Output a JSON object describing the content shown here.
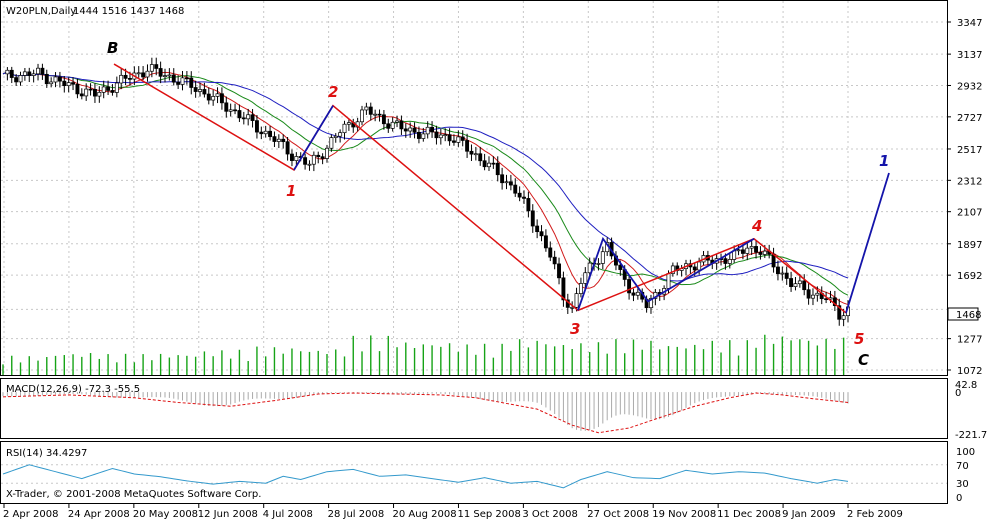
{
  "chart_data": {
    "type": "candlestick",
    "instrument_label": "W20PLN,Daily",
    "ohlc_label": "1444 1516 1437 1468",
    "price_ticks": [
      3347,
      3137,
      2932,
      2727,
      2517,
      2312,
      2107,
      1897,
      1692,
      1468,
      1277,
      1072
    ],
    "last_price": "1468",
    "ylim": [
      1072,
      3347
    ],
    "x_ticks": [
      "2 Apr 2008",
      "24 Apr 2008",
      "20 May 2008",
      "12 Jun 2008",
      "4 Jul 2008",
      "28 Jul 2008",
      "20 Aug 2008",
      "11 Sep 2008",
      "3 Oct 2008",
      "27 Oct 2008",
      "19 Nov 2008",
      "11 Dec 2008",
      "9 Jan 2009",
      "2 Feb 2009"
    ],
    "price_path": [
      [
        0,
        2990
      ],
      [
        8,
        3010
      ],
      [
        14,
        2940
      ],
      [
        21,
        2870
      ],
      [
        27,
        2960
      ],
      [
        33,
        3040
      ],
      [
        38,
        2990
      ],
      [
        43,
        2930
      ],
      [
        48,
        2850
      ],
      [
        53,
        2760
      ],
      [
        58,
        2660
      ],
      [
        62,
        2580
      ],
      [
        66,
        2480
      ],
      [
        70,
        2410
      ],
      [
        73,
        2500
      ],
      [
        77,
        2630
      ],
      [
        80,
        2700
      ],
      [
        83,
        2770
      ],
      [
        86,
        2720
      ],
      [
        91,
        2650
      ],
      [
        96,
        2620
      ],
      [
        102,
        2600
      ],
      [
        107,
        2500
      ],
      [
        112,
        2380
      ],
      [
        117,
        2250
      ],
      [
        121,
        2050
      ],
      [
        125,
        1820
      ],
      [
        128,
        1560
      ],
      [
        130,
        1470
      ],
      [
        132,
        1650
      ],
      [
        135,
        1780
      ],
      [
        138,
        1880
      ],
      [
        141,
        1700
      ],
      [
        144,
        1580
      ],
      [
        147,
        1490
      ],
      [
        150,
        1600
      ],
      [
        153,
        1720
      ],
      [
        157,
        1760
      ],
      [
        162,
        1790
      ],
      [
        167,
        1810
      ],
      [
        170,
        1880
      ],
      [
        173,
        1850
      ],
      [
        176,
        1760
      ],
      [
        180,
        1640
      ],
      [
        184,
        1580
      ],
      [
        188,
        1540
      ],
      [
        191,
        1440
      ],
      [
        193,
        1468
      ]
    ],
    "volume": [
      0.42,
      0.5,
      0.46,
      0.48,
      0.55,
      0.62,
      0.58,
      0.86,
      0.74,
      0.68,
      0.8,
      0.72,
      0.78,
      0.7,
      0.76,
      0.9,
      0.82
    ],
    "macd": {
      "label": "MACD(12,26,9) -72.3 -55.5",
      "ticks": [
        42.8,
        0.0,
        -221.7
      ],
      "ylim": [
        -221.7,
        42.8
      ],
      "signal": [
        [
          0,
          -25
        ],
        [
          15,
          -15
        ],
        [
          30,
          -30
        ],
        [
          40,
          -55
        ],
        [
          52,
          -75
        ],
        [
          62,
          -45
        ],
        [
          72,
          -10
        ],
        [
          80,
          -5
        ],
        [
          90,
          -10
        ],
        [
          100,
          -15
        ],
        [
          108,
          -30
        ],
        [
          115,
          -60
        ],
        [
          122,
          -90
        ],
        [
          130,
          -175
        ],
        [
          136,
          -215
        ],
        [
          143,
          -190
        ],
        [
          150,
          -135
        ],
        [
          158,
          -75
        ],
        [
          166,
          -30
        ],
        [
          172,
          -5
        ],
        [
          178,
          -15
        ],
        [
          185,
          -35
        ],
        [
          193,
          -55
        ]
      ]
    },
    "rsi": {
      "label": "RSI(14) 34.4297",
      "ticks": [
        100,
        70,
        30,
        0
      ],
      "ylim": [
        0,
        100
      ],
      "values": [
        [
          0,
          50
        ],
        [
          6,
          70
        ],
        [
          12,
          55
        ],
        [
          18,
          40
        ],
        [
          25,
          62
        ],
        [
          30,
          50
        ],
        [
          36,
          44
        ],
        [
          42,
          35
        ],
        [
          48,
          28
        ],
        [
          54,
          34
        ],
        [
          60,
          30
        ],
        [
          64,
          45
        ],
        [
          68,
          38
        ],
        [
          74,
          55
        ],
        [
          80,
          60
        ],
        [
          86,
          45
        ],
        [
          92,
          48
        ],
        [
          98,
          40
        ],
        [
          104,
          32
        ],
        [
          110,
          42
        ],
        [
          116,
          30
        ],
        [
          122,
          34
        ],
        [
          128,
          20
        ],
        [
          132,
          38
        ],
        [
          138,
          55
        ],
        [
          144,
          42
        ],
        [
          150,
          40
        ],
        [
          156,
          58
        ],
        [
          162,
          50
        ],
        [
          168,
          55
        ],
        [
          174,
          52
        ],
        [
          180,
          40
        ],
        [
          186,
          30
        ],
        [
          190,
          38
        ],
        [
          193,
          34
        ]
      ]
    },
    "wave_labels": {
      "B": "B",
      "w1": "1",
      "w2": "2",
      "w3": "3",
      "w4": "4",
      "w5": "5",
      "C": "C",
      "next1": "1"
    },
    "copyright": "X-Trader, © 2001-2008 MetaQuotes Software Corp.",
    "colors": {
      "ma_fast": "#d11a1a",
      "ma_mid": "#1a8a1a",
      "ma_slow": "#2020c0",
      "wave_red": "#dd1111",
      "wave_blue": "#1414aa",
      "volume": "#16a316",
      "rsi": "#3399cc",
      "macd_signal": "#dd1111",
      "macd_hist": "#aaaaaa"
    }
  }
}
